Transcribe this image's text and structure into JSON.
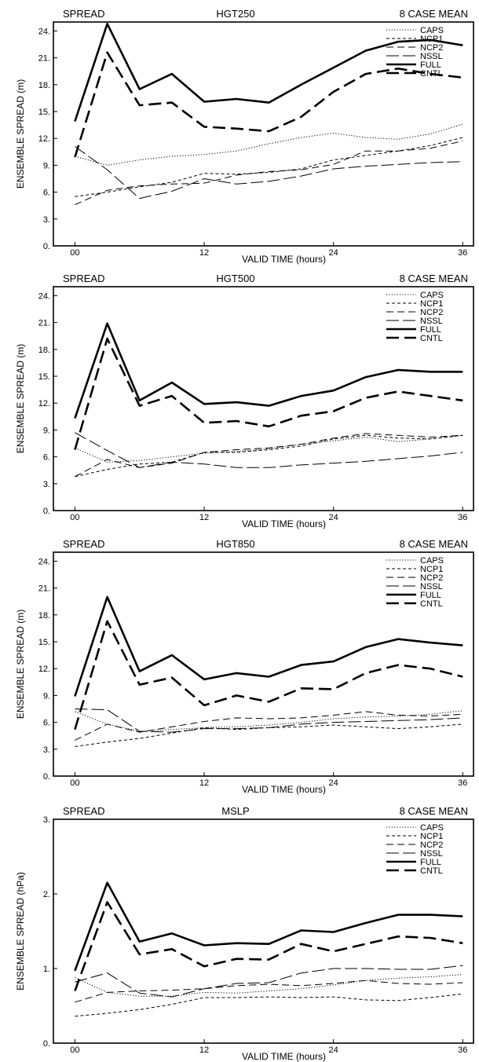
{
  "chart_data": [
    {
      "type": "line",
      "header_left": "SPREAD",
      "title": "HGT250",
      "header_right": "8 CASE MEAN",
      "xlabel": "VALID TIME (hours)",
      "ylabel": "ENSEMBLE SPREAD (m)",
      "xlim": [
        -2,
        37
      ],
      "ylim": [
        0,
        25
      ],
      "xticks": [
        0,
        12,
        24,
        36
      ],
      "xtick_labels": [
        "00",
        "12",
        "24",
        "36"
      ],
      "yticks": [
        0,
        3,
        6,
        9,
        12,
        15,
        18,
        21,
        24
      ],
      "ytick_labels": [
        "0.",
        "3.",
        "6.",
        "9.",
        "12.",
        "15.",
        "18.",
        "21.",
        "24."
      ],
      "legend_position": "top-right",
      "x": [
        0,
        3,
        6,
        9,
        12,
        15,
        18,
        21,
        24,
        27,
        30,
        33,
        36
      ],
      "series": [
        {
          "name": "CAPS",
          "values": [
            10.0,
            9.0,
            9.6,
            10.0,
            10.2,
            10.6,
            11.4,
            12.1,
            12.6,
            12.1,
            11.9,
            12.5,
            13.6
          ]
        },
        {
          "name": "NCP1",
          "values": [
            5.5,
            6.0,
            6.6,
            7.1,
            8.1,
            8.0,
            8.2,
            8.6,
            9.6,
            10.1,
            10.6,
            11.2,
            12.1
          ]
        },
        {
          "name": "NCP2",
          "values": [
            4.6,
            6.2,
            6.7,
            6.9,
            7.0,
            7.9,
            8.3,
            8.5,
            9.1,
            10.6,
            10.6,
            10.9,
            11.7
          ]
        },
        {
          "name": "NSSL",
          "values": [
            11.1,
            8.5,
            5.3,
            6.1,
            7.5,
            6.9,
            7.2,
            7.8,
            8.6,
            8.9,
            9.1,
            9.3,
            9.4
          ]
        },
        {
          "name": "FULL",
          "values": [
            13.9,
            24.8,
            17.5,
            19.2,
            16.1,
            16.4,
            16.0,
            18.0,
            19.9,
            21.8,
            22.8,
            23.0,
            22.4
          ]
        },
        {
          "name": "CNTL",
          "values": [
            9.9,
            21.6,
            15.7,
            16.0,
            13.3,
            13.1,
            12.8,
            14.4,
            17.2,
            19.2,
            19.8,
            19.2,
            18.8
          ]
        }
      ]
    },
    {
      "type": "line",
      "header_left": "SPREAD",
      "title": "HGT500",
      "header_right": "8 CASE MEAN",
      "xlabel": "VALID TIME (hours)",
      "ylabel": "ENSEMBLE SPREAD (m)",
      "xlim": [
        -2,
        37
      ],
      "ylim": [
        0,
        25
      ],
      "xticks": [
        0,
        12,
        24,
        36
      ],
      "xtick_labels": [
        "00",
        "12",
        "24",
        "36"
      ],
      "yticks": [
        0,
        3,
        6,
        9,
        12,
        15,
        18,
        21,
        24
      ],
      "ytick_labels": [
        "0.",
        "3.",
        "6.",
        "9.",
        "12.",
        "15.",
        "18.",
        "21.",
        "24."
      ],
      "legend_position": "top-right",
      "x": [
        0,
        3,
        6,
        9,
        12,
        15,
        18,
        21,
        24,
        27,
        30,
        33,
        36
      ],
      "series": [
        {
          "name": "CAPS",
          "values": [
            7.0,
            5.4,
            5.6,
            6.0,
            6.4,
            6.6,
            6.9,
            7.4,
            7.8,
            8.2,
            7.7,
            8.0,
            8.4
          ]
        },
        {
          "name": "NCP1",
          "values": [
            3.8,
            4.6,
            5.2,
            5.4,
            6.5,
            6.5,
            6.8,
            7.2,
            8.0,
            8.4,
            8.1,
            8.0,
            8.4
          ]
        },
        {
          "name": "NCP2",
          "values": [
            3.8,
            5.7,
            4.8,
            5.3,
            6.5,
            6.8,
            7.0,
            7.4,
            8.1,
            8.6,
            8.4,
            8.2,
            8.4
          ]
        },
        {
          "name": "NSSL",
          "values": [
            8.7,
            6.7,
            4.8,
            5.4,
            5.2,
            4.8,
            4.8,
            5.1,
            5.3,
            5.5,
            5.8,
            6.1,
            6.5
          ]
        },
        {
          "name": "FULL",
          "values": [
            10.3,
            20.9,
            12.3,
            14.3,
            11.9,
            12.1,
            11.7,
            12.8,
            13.4,
            14.9,
            15.7,
            15.5,
            15.5
          ]
        },
        {
          "name": "CNTL",
          "values": [
            6.8,
            19.2,
            11.7,
            12.8,
            9.8,
            10.0,
            9.4,
            10.6,
            11.1,
            12.6,
            13.3,
            12.8,
            12.3
          ]
        }
      ]
    },
    {
      "type": "line",
      "header_left": "SPREAD",
      "title": "HGT850",
      "header_right": "8 CASE MEAN",
      "xlabel": "VALID TIME (hours)",
      "ylabel": "ENSEMBLE SPREAD (m)",
      "xlim": [
        -2,
        37
      ],
      "ylim": [
        0,
        25
      ],
      "xticks": [
        0,
        12,
        24,
        36
      ],
      "xtick_labels": [
        "00",
        "12",
        "24",
        "36"
      ],
      "yticks": [
        0,
        3,
        6,
        9,
        12,
        15,
        18,
        21,
        24
      ],
      "ytick_labels": [
        "0.",
        "3.",
        "6.",
        "9.",
        "12.",
        "15.",
        "18.",
        "21.",
        "24."
      ],
      "legend_position": "top-right",
      "x": [
        0,
        3,
        6,
        9,
        12,
        15,
        18,
        21,
        24,
        27,
        30,
        33,
        36
      ],
      "series": [
        {
          "name": "CAPS",
          "values": [
            7.2,
            5.8,
            5.0,
            5.2,
            5.4,
            5.5,
            5.7,
            6.0,
            6.4,
            6.6,
            6.7,
            6.9,
            7.3
          ]
        },
        {
          "name": "NCP1",
          "values": [
            3.3,
            3.8,
            4.2,
            4.8,
            5.4,
            5.2,
            5.4,
            5.5,
            5.7,
            5.5,
            5.3,
            5.5,
            5.8
          ]
        },
        {
          "name": "NCP2",
          "values": [
            4.0,
            5.8,
            4.9,
            5.5,
            6.1,
            6.5,
            6.4,
            6.5,
            6.8,
            7.2,
            6.8,
            6.7,
            6.9
          ]
        },
        {
          "name": "NSSL",
          "values": [
            7.5,
            7.4,
            5.0,
            4.9,
            5.3,
            5.3,
            5.4,
            5.8,
            6.0,
            6.1,
            6.2,
            6.3,
            6.5
          ]
        },
        {
          "name": "FULL",
          "values": [
            8.9,
            20.0,
            11.7,
            13.5,
            10.8,
            11.5,
            11.1,
            12.4,
            12.8,
            14.4,
            15.3,
            14.9,
            14.6
          ]
        },
        {
          "name": "CNTL",
          "values": [
            5.2,
            17.3,
            10.2,
            11.0,
            7.9,
            9.0,
            8.3,
            9.8,
            9.7,
            11.5,
            12.4,
            12.0,
            11.1
          ]
        }
      ]
    },
    {
      "type": "line",
      "header_left": "SPREAD",
      "title": "MSLP",
      "header_right": "8 CASE MEAN",
      "xlabel": "VALID TIME (hours)",
      "ylabel": "ENSEMBLE SPREAD (hPa)",
      "xlim": [
        -2,
        37
      ],
      "ylim": [
        0,
        3
      ],
      "xticks": [
        0,
        12,
        24,
        36
      ],
      "xtick_labels": [
        "00",
        "12",
        "24",
        "36"
      ],
      "yticks": [
        0,
        1,
        2,
        3
      ],
      "ytick_labels": [
        "0.",
        "1.",
        "2.",
        "3."
      ],
      "legend_position": "top-right",
      "x": [
        0,
        3,
        6,
        9,
        12,
        15,
        18,
        21,
        24,
        27,
        30,
        33,
        36
      ],
      "series": [
        {
          "name": "CAPS",
          "values": [
            0.88,
            0.68,
            0.63,
            0.63,
            0.68,
            0.67,
            0.7,
            0.73,
            0.78,
            0.84,
            0.87,
            0.89,
            0.92
          ]
        },
        {
          "name": "NCP1",
          "values": [
            0.36,
            0.4,
            0.45,
            0.52,
            0.61,
            0.61,
            0.62,
            0.61,
            0.62,
            0.58,
            0.57,
            0.61,
            0.66
          ]
        },
        {
          "name": "NCP2",
          "values": [
            0.55,
            0.68,
            0.7,
            0.71,
            0.73,
            0.77,
            0.79,
            0.77,
            0.8,
            0.84,
            0.8,
            0.79,
            0.81
          ]
        },
        {
          "name": "NSSL",
          "values": [
            0.82,
            0.94,
            0.67,
            0.62,
            0.73,
            0.8,
            0.81,
            0.94,
            1.0,
            1.0,
            0.99,
            0.99,
            1.04
          ]
        },
        {
          "name": "FULL",
          "values": [
            0.97,
            2.15,
            1.36,
            1.47,
            1.31,
            1.34,
            1.33,
            1.51,
            1.49,
            1.61,
            1.72,
            1.72,
            1.7
          ]
        },
        {
          "name": "CNTL",
          "values": [
            0.7,
            1.89,
            1.19,
            1.26,
            1.03,
            1.13,
            1.12,
            1.33,
            1.23,
            1.33,
            1.43,
            1.41,
            1.34
          ]
        }
      ]
    }
  ],
  "series_styles": {
    "CAPS": {
      "color": "#000000",
      "width": 1.0,
      "dash": "1.2,2.2"
    },
    "NCP1": {
      "color": "#000000",
      "width": 1.0,
      "dash": "4,3"
    },
    "NCP2": {
      "color": "#000000",
      "width": 1.0,
      "dash": "9,5"
    },
    "NSSL": {
      "color": "#000000",
      "width": 1.0,
      "dash": "16,5"
    },
    "FULL": {
      "color": "#000000",
      "width": 2.6,
      "dash": ""
    },
    "CNTL": {
      "color": "#000000",
      "width": 2.6,
      "dash": "16,7"
    }
  }
}
